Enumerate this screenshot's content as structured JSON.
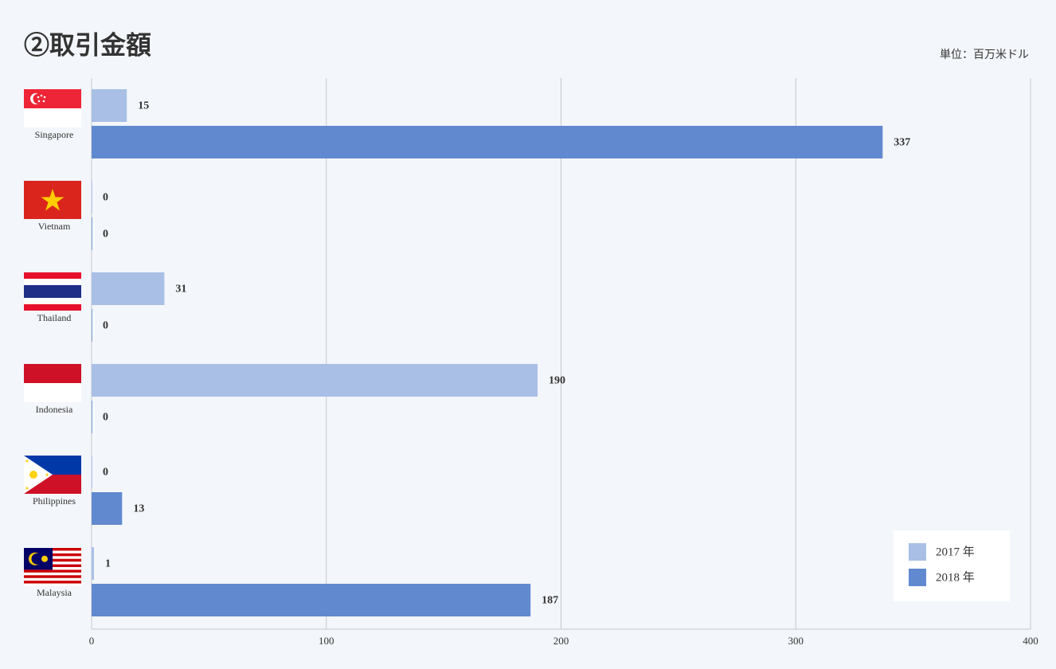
{
  "chart_data": {
    "type": "bar",
    "orientation": "horizontal",
    "title": "②取引金額",
    "unit": "単位：百万米ドル",
    "categories": [
      "Singapore",
      "Vietnam",
      "Thailand",
      "Indonesia",
      "Philippines",
      "Malaysia"
    ],
    "series": [
      {
        "name": "2017 年",
        "color": "#a9bfe6",
        "values": [
          15,
          0,
          31,
          190,
          0,
          1
        ]
      },
      {
        "name": "2018 年",
        "color": "#6189cf",
        "values": [
          337,
          0,
          0,
          0,
          13,
          187
        ]
      }
    ],
    "xlim": [
      0,
      400
    ],
    "xticks": [
      0,
      100,
      200,
      300,
      400
    ],
    "grid": true,
    "legend": "lower right"
  }
}
